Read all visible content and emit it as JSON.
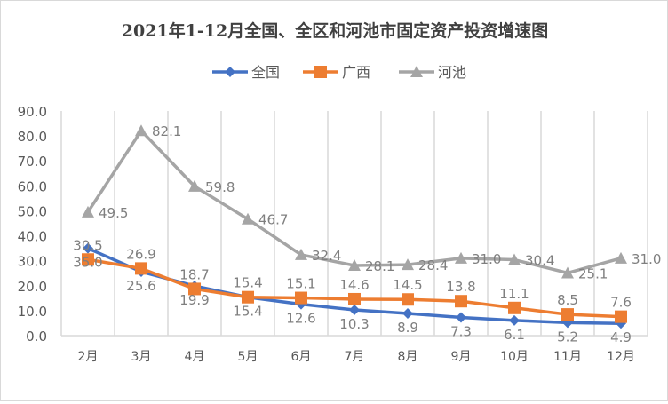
{
  "chart_data": {
    "type": "line",
    "title": "2021年1-12月全国、全区和河池市固定资产投资增速图",
    "categories": [
      "2月",
      "3月",
      "4月",
      "5月",
      "6月",
      "7月",
      "8月",
      "9月",
      "10月",
      "11月",
      "12月"
    ],
    "ylim": [
      0,
      90
    ],
    "yticks": [
      "0.0",
      "10.0",
      "20.0",
      "30.0",
      "40.0",
      "50.0",
      "60.0",
      "70.0",
      "80.0",
      "90.0"
    ],
    "grid": "vertical",
    "legend": "top",
    "series": [
      {
        "name": "全国",
        "color": "#4472c4",
        "marker": "diamond",
        "values": [
          35.0,
          25.6,
          19.9,
          15.4,
          12.6,
          10.3,
          8.9,
          7.3,
          6.1,
          5.2,
          4.9
        ]
      },
      {
        "name": "广西",
        "color": "#ed7d31",
        "marker": "square",
        "values": [
          30.5,
          26.9,
          18.7,
          15.4,
          15.1,
          14.6,
          14.5,
          13.8,
          11.1,
          8.5,
          7.6
        ]
      },
      {
        "name": "河池",
        "color": "#a5a5a5",
        "marker": "triangle",
        "values": [
          49.5,
          82.1,
          59.8,
          46.7,
          32.4,
          28.1,
          28.4,
          31.0,
          30.4,
          25.1,
          31.0
        ]
      }
    ]
  }
}
